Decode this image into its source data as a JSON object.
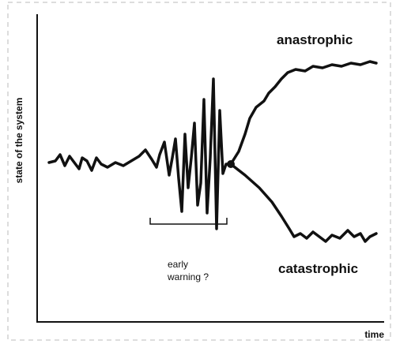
{
  "axes": {
    "y_label": "state of the system",
    "x_label": "time"
  },
  "branches": {
    "upper": "anastrophic",
    "lower": "catastrophic"
  },
  "annotation": {
    "line1": "early",
    "line2": "warning ?"
  }
}
